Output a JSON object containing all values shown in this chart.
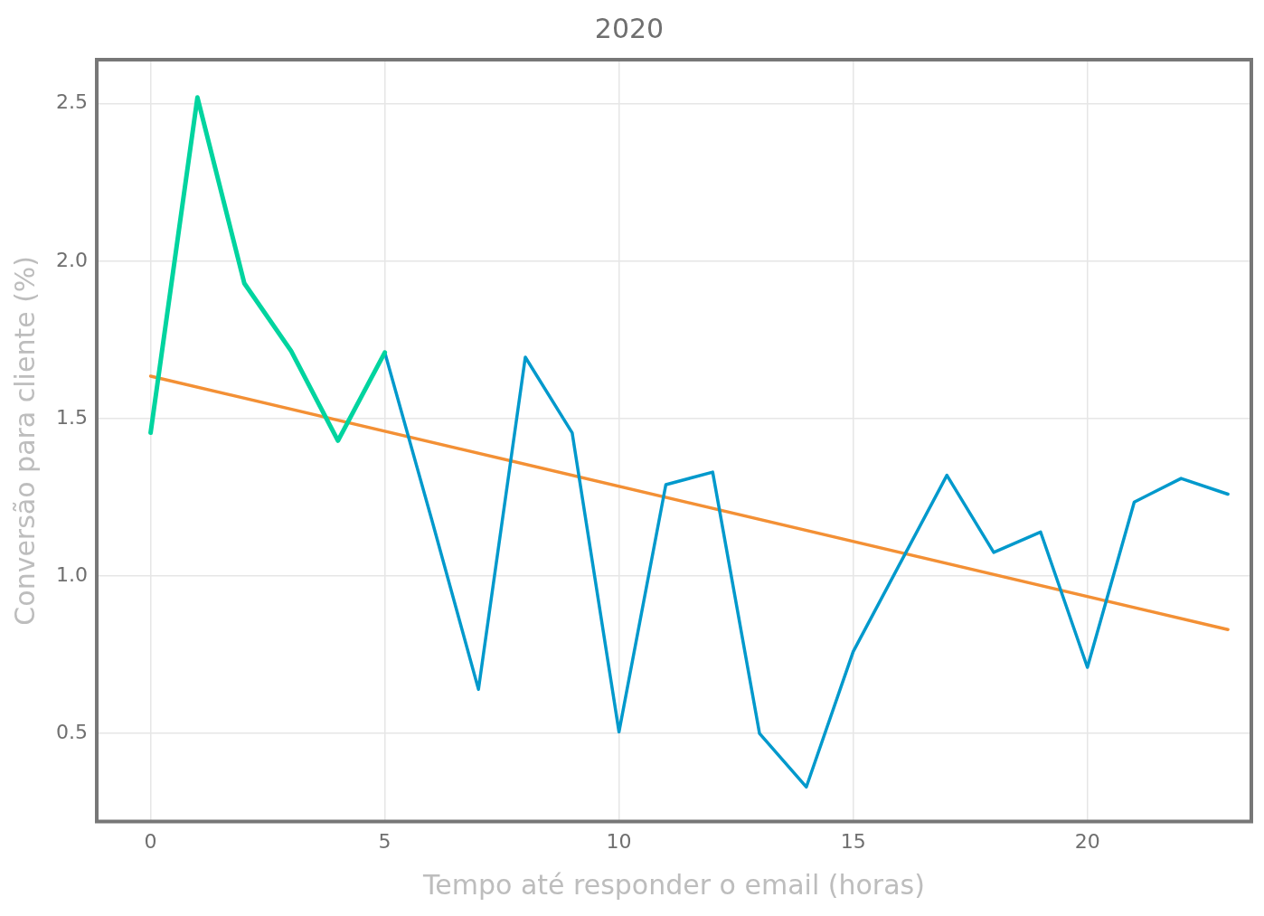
{
  "chart_data": {
    "type": "line",
    "title": "2020",
    "xlabel": "Tempo até responder o email (horas)",
    "ylabel": "Conversão para cliente (%)",
    "xlim": [
      -1.15,
      23.5
    ],
    "xticks": [
      0,
      5,
      10,
      15,
      20
    ],
    "ylim": [
      0.22,
      2.64
    ],
    "yticks": [
      0.5,
      {
        "value": 1,
        "label": "1.0"
      },
      1.5,
      {
        "value": 2,
        "label": "2.0"
      },
      2.5
    ],
    "grid": true,
    "legend": false,
    "marker": "none",
    "line_style": "solid",
    "series": [
      {
        "color": "#00d49f",
        "x": [
          0,
          1,
          2,
          3,
          4,
          5
        ],
        "values": [
          1.455,
          2.52,
          1.93,
          1.715,
          1.43,
          1.71
        ]
      },
      {
        "color": "#0099cc",
        "x": [
          5,
          6,
          7,
          8,
          9,
          10,
          11,
          12,
          13,
          14,
          15,
          16,
          17,
          18,
          19,
          20,
          21,
          22,
          23
        ],
        "values": [
          1.71,
          1.18,
          0.64,
          1.695,
          1.455,
          0.505,
          1.29,
          1.33,
          0.5,
          0.33,
          0.76,
          1.04,
          1.32,
          1.075,
          1.14,
          0.71,
          1.235,
          1.31,
          1.26
        ]
      },
      {
        "color": "#f39035",
        "x": [
          0,
          23
        ],
        "values": [
          1.635,
          0.83
        ]
      }
    ]
  }
}
